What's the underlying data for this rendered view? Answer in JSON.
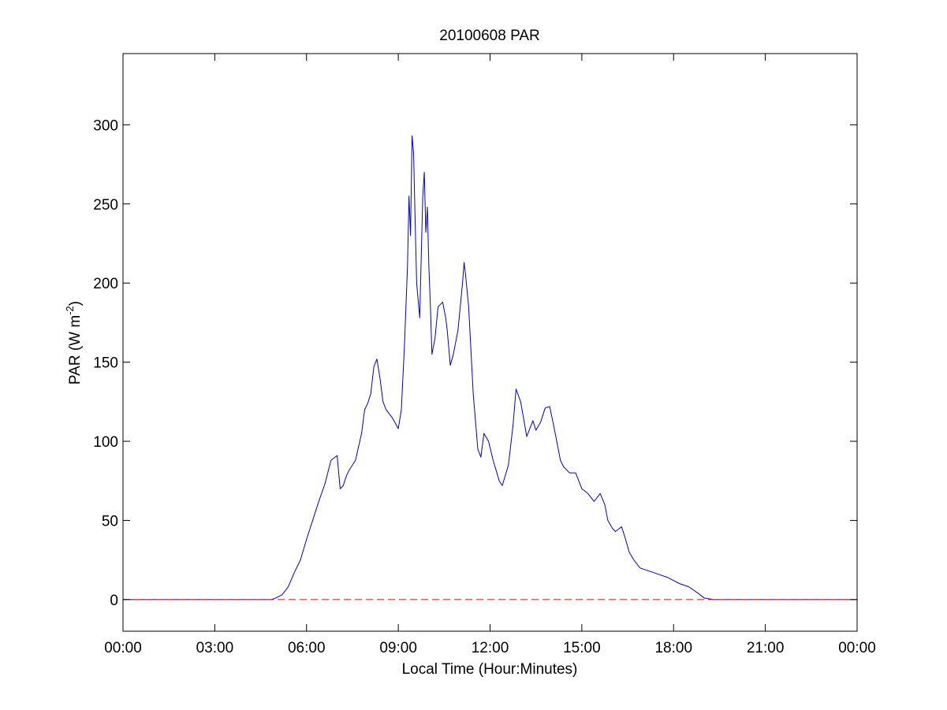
{
  "chart_data": {
    "type": "line",
    "title": "20100608 PAR",
    "xlabel": "Local Time (Hour:Minutes)",
    "ylabel_main": "PAR (W m",
    "ylabel_sup": "-2",
    "ylabel_close": ")",
    "xlim": [
      0,
      24
    ],
    "ylim": [
      -20,
      345
    ],
    "x_unit": "hours",
    "xticks": [
      0,
      3,
      6,
      9,
      12,
      15,
      18,
      21,
      24
    ],
    "xtick_labels": [
      "00:00",
      "03:00",
      "06:00",
      "09:00",
      "12:00",
      "15:00",
      "18:00",
      "21:00",
      "00:00"
    ],
    "yticks": [
      0,
      50,
      100,
      150,
      200,
      250,
      300
    ],
    "ytick_labels": [
      "0",
      "50",
      "100",
      "150",
      "200",
      "250",
      "300"
    ],
    "grid": false,
    "series": [
      {
        "color": "#0000c8",
        "style": "solid",
        "x": [
          0,
          4.85,
          5.0,
          5.2,
          5.4,
          5.6,
          5.8,
          6.0,
          6.2,
          6.4,
          6.6,
          6.8,
          7.0,
          7.1,
          7.2,
          7.3,
          7.4,
          7.6,
          7.8,
          7.9,
          8.0,
          8.1,
          8.2,
          8.3,
          8.4,
          8.5,
          8.6,
          8.8,
          9.0,
          9.1,
          9.2,
          9.3,
          9.35,
          9.4,
          9.45,
          9.5,
          9.55,
          9.6,
          9.7,
          9.8,
          9.85,
          9.9,
          9.95,
          10.0,
          10.05,
          10.1,
          10.2,
          10.3,
          10.45,
          10.55,
          10.6,
          10.7,
          10.8,
          10.95,
          11.1,
          11.15,
          11.2,
          11.3,
          11.45,
          11.6,
          11.7,
          11.8,
          11.95,
          12.1,
          12.3,
          12.4,
          12.6,
          12.75,
          12.85,
          13.0,
          13.2,
          13.4,
          13.5,
          13.65,
          13.8,
          13.95,
          14.1,
          14.3,
          14.4,
          14.6,
          14.8,
          15.0,
          15.2,
          15.4,
          15.6,
          15.75,
          15.85,
          16.0,
          16.1,
          16.3,
          16.4,
          16.55,
          16.7,
          16.9,
          17.2,
          17.5,
          17.8,
          18.0,
          18.2,
          18.5,
          18.8,
          19.0,
          19.3,
          19.8,
          24
        ],
        "y": [
          0,
          0,
          1,
          3,
          8,
          17,
          25,
          38,
          50,
          62,
          73,
          88,
          91,
          70,
          72,
          78,
          82,
          88,
          105,
          120,
          124,
          130,
          147,
          152,
          140,
          125,
          120,
          115,
          108,
          120,
          160,
          210,
          255,
          230,
          293,
          282,
          240,
          200,
          178,
          255,
          270,
          232,
          248,
          210,
          185,
          155,
          165,
          185,
          188,
          178,
          170,
          148,
          155,
          170,
          200,
          213,
          205,
          185,
          130,
          95,
          90,
          105,
          100,
          88,
          75,
          72,
          85,
          110,
          133,
          125,
          103,
          113,
          107,
          112,
          121,
          122,
          108,
          88,
          84,
          80,
          80,
          70,
          67,
          62,
          67,
          60,
          50,
          45,
          43,
          46,
          40,
          30,
          25,
          20,
          18,
          16,
          14,
          12,
          10,
          8,
          4,
          1,
          0,
          0,
          0
        ]
      },
      {
        "color": "#ff0000",
        "style": "dashed",
        "x": [
          0,
          24
        ],
        "y": [
          0,
          0
        ]
      }
    ]
  }
}
